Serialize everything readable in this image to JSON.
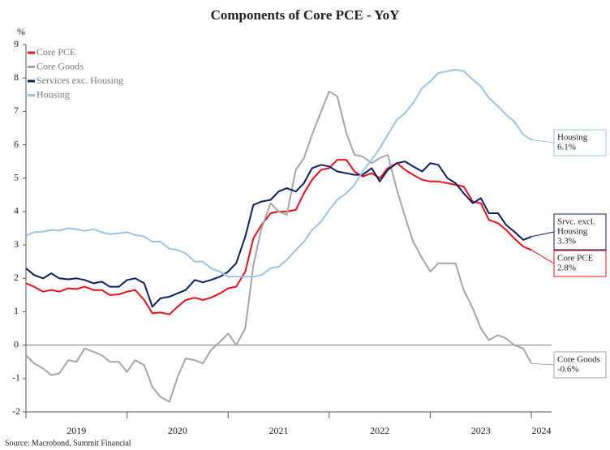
{
  "chart_data": {
    "type": "line",
    "title": "Components of Core PCE - YoY",
    "y_label": "%",
    "source": "Source: Macrobond, Summit Financial",
    "x": [
      2019,
      2019.08,
      2019.17,
      2019.25,
      2019.33,
      2019.42,
      2019.5,
      2019.58,
      2019.67,
      2019.75,
      2019.83,
      2019.92,
      2020,
      2020.08,
      2020.17,
      2020.25,
      2020.33,
      2020.42,
      2020.5,
      2020.58,
      2020.67,
      2020.75,
      2020.83,
      2020.92,
      2021,
      2021.08,
      2021.17,
      2021.25,
      2021.33,
      2021.42,
      2021.5,
      2021.58,
      2021.67,
      2021.75,
      2021.83,
      2021.92,
      2022,
      2022.08,
      2022.17,
      2022.25,
      2022.33,
      2022.42,
      2022.5,
      2022.58,
      2022.67,
      2022.75,
      2022.83,
      2022.92,
      2023,
      2023.08,
      2023.17,
      2023.25,
      2023.33,
      2023.42,
      2023.5,
      2023.58,
      2023.67,
      2023.75,
      2023.83,
      2023.92,
      2024
    ],
    "series": [
      {
        "name": "Core PCE",
        "color": "#e8101a",
        "values": [
          1.85,
          1.75,
          1.6,
          1.65,
          1.6,
          1.7,
          1.68,
          1.75,
          1.65,
          1.65,
          1.5,
          1.52,
          1.6,
          1.65,
          1.35,
          0.95,
          0.98,
          0.92,
          1.15,
          1.35,
          1.42,
          1.35,
          1.42,
          1.55,
          1.7,
          1.75,
          2.2,
          3.2,
          3.6,
          3.95,
          4.0,
          4.0,
          4.05,
          4.55,
          4.95,
          5.25,
          5.3,
          5.55,
          5.55,
          5.2,
          5.05,
          5.15,
          5.0,
          5.3,
          5.45,
          5.25,
          5.1,
          4.95,
          4.9,
          4.9,
          4.85,
          4.8,
          4.75,
          4.3,
          4.25,
          3.75,
          3.65,
          3.45,
          3.2,
          2.95,
          2.85
        ]
      },
      {
        "name": "Core Goods",
        "color": "#a6a6a6",
        "values": [
          -0.3,
          -0.55,
          -0.7,
          -0.9,
          -0.85,
          -0.45,
          -0.5,
          -0.1,
          -0.2,
          -0.3,
          -0.5,
          -0.5,
          -0.8,
          -0.45,
          -0.6,
          -1.25,
          -1.55,
          -1.7,
          -0.95,
          -0.4,
          -0.45,
          -0.55,
          -0.15,
          0.1,
          0.35,
          0.0,
          0.5,
          2.4,
          3.5,
          4.25,
          4.0,
          3.9,
          5.25,
          5.6,
          6.3,
          7.0,
          7.6,
          7.45,
          6.35,
          5.7,
          5.65,
          5.45,
          5.6,
          5.7,
          4.65,
          3.85,
          3.1,
          2.6,
          2.2,
          2.45,
          2.45,
          2.45,
          1.65,
          1.1,
          0.5,
          0.15,
          0.3,
          0.2,
          0.0,
          -0.1,
          -0.55
        ]
      },
      {
        "name": "Services exc. Housing",
        "color": "#0d1f5c",
        "values": [
          2.3,
          2.1,
          2.0,
          2.15,
          2.0,
          1.97,
          2.0,
          1.95,
          1.85,
          1.9,
          1.75,
          1.75,
          1.95,
          2.0,
          1.85,
          1.15,
          1.4,
          1.45,
          1.55,
          1.65,
          1.95,
          1.88,
          1.95,
          2.05,
          2.2,
          2.45,
          3.25,
          4.2,
          4.3,
          4.35,
          4.6,
          4.7,
          4.6,
          4.85,
          5.3,
          5.4,
          5.35,
          5.2,
          5.15,
          5.1,
          5.1,
          5.3,
          4.9,
          5.25,
          5.45,
          5.5,
          5.35,
          5.2,
          5.45,
          5.4,
          5.0,
          4.85,
          4.55,
          4.25,
          4.4,
          3.95,
          3.95,
          3.6,
          3.4,
          3.15,
          3.25
        ]
      },
      {
        "name": "Housing",
        "color": "#9cc3e6",
        "values": [
          3.28,
          3.38,
          3.4,
          3.45,
          3.43,
          3.5,
          3.47,
          3.42,
          3.47,
          3.38,
          3.32,
          3.35,
          3.38,
          3.3,
          3.25,
          3.1,
          3.1,
          2.88,
          2.85,
          2.75,
          2.5,
          2.5,
          2.3,
          2.2,
          2.05,
          2.05,
          2.05,
          2.05,
          2.1,
          2.3,
          2.35,
          2.55,
          2.85,
          3.1,
          3.45,
          3.7,
          4.05,
          4.35,
          4.55,
          4.8,
          5.2,
          5.55,
          5.9,
          6.3,
          6.75,
          6.95,
          7.25,
          7.7,
          7.9,
          8.15,
          8.2,
          8.25,
          8.2,
          7.95,
          7.75,
          7.4,
          7.15,
          6.9,
          6.7,
          6.3,
          6.15
        ]
      }
    ],
    "annotations": [
      {
        "series": 3,
        "lines": [
          "Housing",
          "6.1%"
        ]
      },
      {
        "series": 2,
        "lines": [
          "Srvc. excl.",
          "Housing",
          "3.3%"
        ]
      },
      {
        "series": 0,
        "lines": [
          "Core PCE",
          "2.8%"
        ]
      },
      {
        "series": 1,
        "lines": [
          "Core Goods",
          "-0.6%"
        ]
      }
    ],
    "xlim": [
      2019,
      2024.2
    ],
    "xticks": [
      {
        "value": 2019.5,
        "label": "2019"
      },
      {
        "value": 2020.5,
        "label": "2020"
      },
      {
        "value": 2021.5,
        "label": "2021"
      },
      {
        "value": 2022.5,
        "label": "2022"
      },
      {
        "value": 2023.5,
        "label": "2023"
      },
      {
        "value": 2024.1,
        "label": "2024"
      }
    ],
    "ylim": [
      -2,
      9
    ],
    "yticks": [
      -2,
      -1,
      0,
      1,
      2,
      3,
      4,
      5,
      6,
      7,
      8,
      9
    ],
    "zero_line": true,
    "legend": "upper left"
  }
}
